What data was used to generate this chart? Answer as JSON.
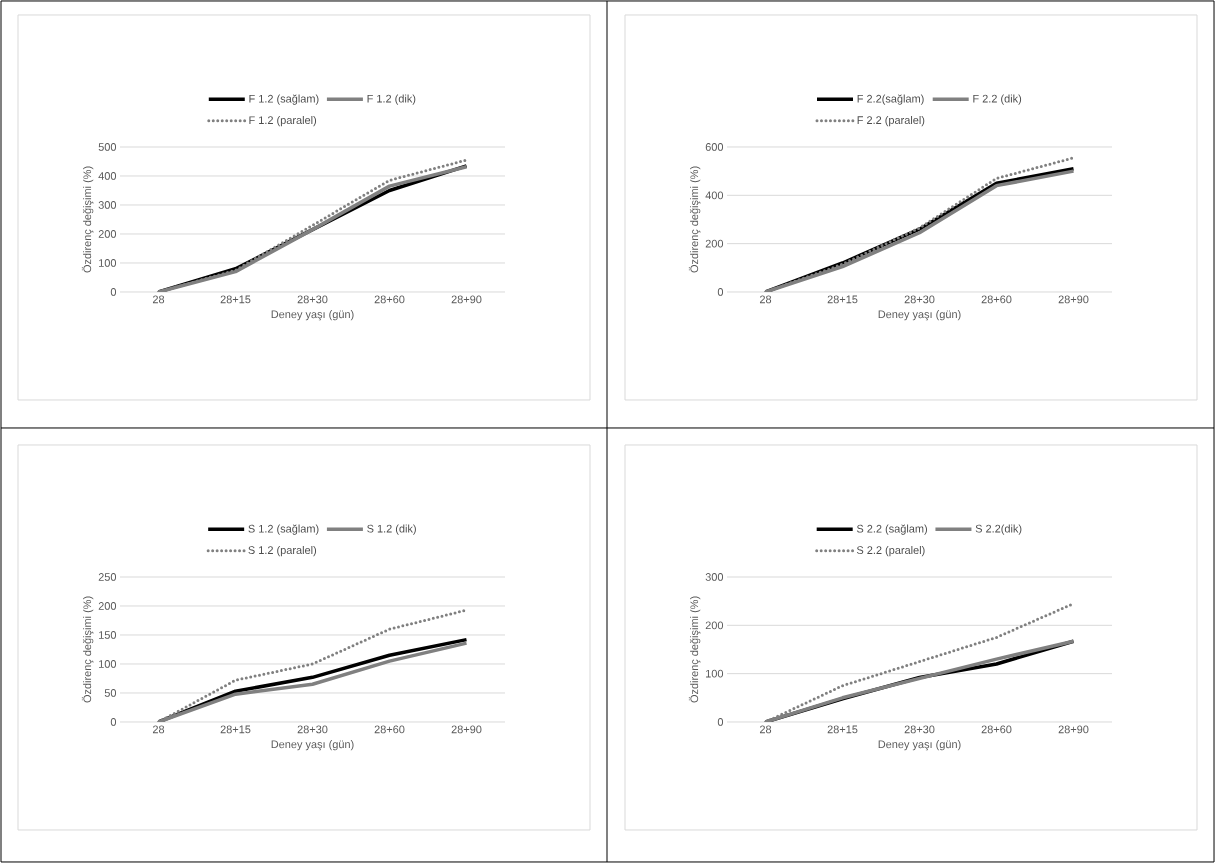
{
  "chart_data": [
    {
      "type": "line",
      "categories": [
        "28",
        "28+15",
        "28+30",
        "28+60",
        "28+90"
      ],
      "xlabel": "Deney yaşı (gün)",
      "ylabel": "Özdirenç değişimi (%)",
      "ylim": [
        0,
        500
      ],
      "yticks": [
        0,
        100,
        200,
        300,
        400,
        500
      ],
      "grid": "y",
      "legend": "top",
      "series": [
        {
          "name": "F 1.2 (sağlam)",
          "color": "#000000",
          "line_style": "solid",
          "values": [
            0,
            80,
            215,
            350,
            435
          ]
        },
        {
          "name": "F 1.2 (dik)",
          "color": "#808080",
          "line_style": "solid",
          "values": [
            0,
            70,
            215,
            365,
            432
          ]
        },
        {
          "name": "F 1.2 (paralel)",
          "color": "#808080",
          "line_style": "dotted",
          "values": [
            0,
            75,
            230,
            385,
            455
          ]
        }
      ]
    },
    {
      "type": "line",
      "categories": [
        "28",
        "28+15",
        "28+30",
        "28+60",
        "28+90"
      ],
      "xlabel": "Deney yaşı (gün)",
      "ylabel": "Özdirenç değişimi (%)",
      "ylim": [
        0,
        600
      ],
      "yticks": [
        0,
        200,
        400,
        600
      ],
      "grid": "y",
      "legend": "top",
      "series": [
        {
          "name": "F 2.2(sağlam)",
          "color": "#000000",
          "line_style": "solid",
          "values": [
            0,
            120,
            260,
            450,
            510
          ]
        },
        {
          "name": "F 2.2 (dik)",
          "color": "#808080",
          "line_style": "solid",
          "values": [
            0,
            105,
            245,
            440,
            500
          ]
        },
        {
          "name": "F 2.2 (paralel)",
          "color": "#808080",
          "line_style": "dotted",
          "values": [
            0,
            115,
            265,
            470,
            555
          ]
        }
      ]
    },
    {
      "type": "line",
      "categories": [
        "28",
        "28+15",
        "28+30",
        "28+60",
        "28+90"
      ],
      "xlabel": "Deney yaşı (gün)",
      "ylabel": "Özdirenç değişimi (%)",
      "ylim": [
        0,
        250
      ],
      "yticks": [
        0,
        50,
        100,
        150,
        200,
        250
      ],
      "grid": "y",
      "legend": "top",
      "series": [
        {
          "name": "S 1.2 (sağlam)",
          "color": "#000000",
          "line_style": "solid",
          "values": [
            0,
            53,
            77,
            115,
            142
          ]
        },
        {
          "name": "S 1.2 (dik)",
          "color": "#808080",
          "line_style": "solid",
          "values": [
            0,
            48,
            65,
            105,
            136
          ]
        },
        {
          "name": "S 1.2 (paralel)",
          "color": "#808080",
          "line_style": "dotted",
          "values": [
            0,
            72,
            100,
            160,
            193
          ]
        }
      ]
    },
    {
      "type": "line",
      "categories": [
        "28",
        "28+15",
        "28+30",
        "28+60",
        "28+90"
      ],
      "xlabel": "Deney yaşı (gün)",
      "ylabel": "Özdirenç değişimi (%)",
      "ylim": [
        0,
        300
      ],
      "yticks": [
        0,
        100,
        200,
        300
      ],
      "grid": "y",
      "legend": "top",
      "series": [
        {
          "name": "S 2.2 (sağlam)",
          "color": "#000000",
          "line_style": "solid",
          "values": [
            0,
            48,
            92,
            120,
            167
          ]
        },
        {
          "name": "S 2.2(dik)",
          "color": "#808080",
          "line_style": "solid",
          "values": [
            0,
            50,
            90,
            130,
            167
          ]
        },
        {
          "name": "S 2.2 (paralel)",
          "color": "#808080",
          "line_style": "dotted",
          "values": [
            0,
            75,
            125,
            175,
            245
          ]
        }
      ]
    }
  ]
}
